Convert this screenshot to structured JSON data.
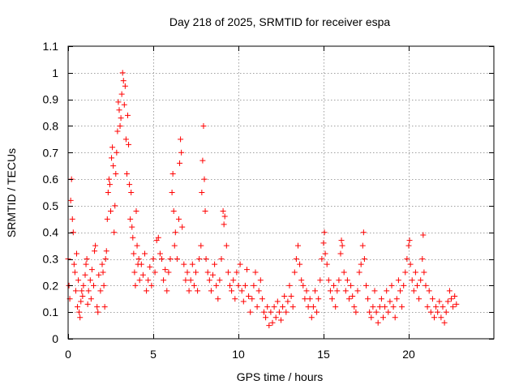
{
  "chart_data": {
    "type": "scatter",
    "title": "Day 218 of 2025, SRMTID for receiver espa",
    "xlabel": "GPS time / hours",
    "ylabel": "SRMTID / TECUs",
    "xlim": [
      0,
      25
    ],
    "ylim": [
      0,
      1.1
    ],
    "xticks": [
      0,
      5,
      10,
      15,
      20
    ],
    "xtick_labels": [
      "0",
      "5",
      "10",
      "15",
      "20"
    ],
    "yticks": [
      0,
      0.1,
      0.2,
      0.3,
      0.4,
      0.5,
      0.6,
      0.7,
      0.8,
      0.9,
      1,
      1.1
    ],
    "ytick_labels": [
      "0",
      "0.1",
      "0.2",
      "0.3",
      "0.4",
      "0.5",
      "0.6",
      "0.7",
      "0.8",
      "0.9",
      "1",
      "1.1"
    ],
    "grid": true,
    "marker": "+",
    "marker_color": "#ff0000",
    "series": [
      {
        "name": "SRMTID",
        "points": [
          [
            0.0,
            0.3
          ],
          [
            0.05,
            0.2
          ],
          [
            0.1,
            0.15
          ],
          [
            0.15,
            0.52
          ],
          [
            0.2,
            0.6
          ],
          [
            0.25,
            0.45
          ],
          [
            0.3,
            0.4
          ],
          [
            0.35,
            0.28
          ],
          [
            0.4,
            0.25
          ],
          [
            0.45,
            0.18
          ],
          [
            0.5,
            0.32
          ],
          [
            0.55,
            0.12
          ],
          [
            0.6,
            0.22
          ],
          [
            0.65,
            0.1
          ],
          [
            0.7,
            0.08
          ],
          [
            0.75,
            0.14
          ],
          [
            0.8,
            0.18
          ],
          [
            0.85,
            0.16
          ],
          [
            0.9,
            0.2
          ],
          [
            1.0,
            0.24
          ],
          [
            1.05,
            0.28
          ],
          [
            1.1,
            0.3
          ],
          [
            1.15,
            0.13
          ],
          [
            1.2,
            0.18
          ],
          [
            1.3,
            0.22
          ],
          [
            1.35,
            0.15
          ],
          [
            1.4,
            0.26
          ],
          [
            1.5,
            0.2
          ],
          [
            1.55,
            0.33
          ],
          [
            1.6,
            0.35
          ],
          [
            1.7,
            0.12
          ],
          [
            1.75,
            0.1
          ],
          [
            1.8,
            0.24
          ],
          [
            1.9,
            0.18
          ],
          [
            2.0,
            0.28
          ],
          [
            2.05,
            0.25
          ],
          [
            2.1,
            0.2
          ],
          [
            2.15,
            0.12
          ],
          [
            2.2,
            0.3
          ],
          [
            2.25,
            0.33
          ],
          [
            2.3,
            0.45
          ],
          [
            2.35,
            0.55
          ],
          [
            2.4,
            0.6
          ],
          [
            2.45,
            0.58
          ],
          [
            2.5,
            0.48
          ],
          [
            2.55,
            0.68
          ],
          [
            2.6,
            0.72
          ],
          [
            2.65,
            0.65
          ],
          [
            2.7,
            0.4
          ],
          [
            2.75,
            0.5
          ],
          [
            2.8,
            0.62
          ],
          [
            2.85,
            0.7
          ],
          [
            2.9,
            0.78
          ],
          [
            2.95,
            0.89
          ],
          [
            3.0,
            0.86
          ],
          [
            3.05,
            0.8
          ],
          [
            3.1,
            0.83
          ],
          [
            3.15,
            0.92
          ],
          [
            3.2,
            1.0
          ],
          [
            3.25,
            0.97
          ],
          [
            3.3,
            0.88
          ],
          [
            3.35,
            0.95
          ],
          [
            3.4,
            0.75
          ],
          [
            3.45,
            0.62
          ],
          [
            3.5,
            0.84
          ],
          [
            3.55,
            0.73
          ],
          [
            3.6,
            0.58
          ],
          [
            3.65,
            0.45
          ],
          [
            3.7,
            0.55
          ],
          [
            3.75,
            0.42
          ],
          [
            3.8,
            0.38
          ],
          [
            3.85,
            0.32
          ],
          [
            3.9,
            0.25
          ],
          [
            3.95,
            0.2
          ],
          [
            4.0,
            0.48
          ],
          [
            4.05,
            0.35
          ],
          [
            4.1,
            0.28
          ],
          [
            4.15,
            0.3
          ],
          [
            4.2,
            0.22
          ],
          [
            4.3,
            0.28
          ],
          [
            4.4,
            0.24
          ],
          [
            4.5,
            0.32
          ],
          [
            4.6,
            0.18
          ],
          [
            4.7,
            0.22
          ],
          [
            4.8,
            0.27
          ],
          [
            4.9,
            0.2
          ],
          [
            5.0,
            0.3
          ],
          [
            5.1,
            0.25
          ],
          [
            5.2,
            0.37
          ],
          [
            5.3,
            0.38
          ],
          [
            5.4,
            0.32
          ],
          [
            5.5,
            0.3
          ],
          [
            5.6,
            0.22
          ],
          [
            5.7,
            0.26
          ],
          [
            5.8,
            0.18
          ],
          [
            5.9,
            0.25
          ],
          [
            6.0,
            0.3
          ],
          [
            6.1,
            0.55
          ],
          [
            6.15,
            0.62
          ],
          [
            6.2,
            0.48
          ],
          [
            6.25,
            0.35
          ],
          [
            6.3,
            0.4
          ],
          [
            6.4,
            0.3
          ],
          [
            6.5,
            0.45
          ],
          [
            6.55,
            0.66
          ],
          [
            6.6,
            0.75
          ],
          [
            6.65,
            0.7
          ],
          [
            6.7,
            0.42
          ],
          [
            6.8,
            0.28
          ],
          [
            6.9,
            0.22
          ],
          [
            7.0,
            0.25
          ],
          [
            7.1,
            0.18
          ],
          [
            7.2,
            0.22
          ],
          [
            7.3,
            0.28
          ],
          [
            7.4,
            0.2
          ],
          [
            7.5,
            0.25
          ],
          [
            7.6,
            0.18
          ],
          [
            7.7,
            0.3
          ],
          [
            7.8,
            0.35
          ],
          [
            7.85,
            0.55
          ],
          [
            7.9,
            0.67
          ],
          [
            7.95,
            0.8
          ],
          [
            8.0,
            0.6
          ],
          [
            8.05,
            0.48
          ],
          [
            8.1,
            0.3
          ],
          [
            8.2,
            0.25
          ],
          [
            8.3,
            0.22
          ],
          [
            8.4,
            0.18
          ],
          [
            8.5,
            0.24
          ],
          [
            8.6,
            0.28
          ],
          [
            8.7,
            0.2
          ],
          [
            8.8,
            0.15
          ],
          [
            8.9,
            0.22
          ],
          [
            9.0,
            0.3
          ],
          [
            9.1,
            0.48
          ],
          [
            9.15,
            0.43
          ],
          [
            9.2,
            0.46
          ],
          [
            9.3,
            0.35
          ],
          [
            9.4,
            0.25
          ],
          [
            9.5,
            0.2
          ],
          [
            9.6,
            0.18
          ],
          [
            9.7,
            0.22
          ],
          [
            9.8,
            0.15
          ],
          [
            9.9,
            0.25
          ],
          [
            10.0,
            0.2
          ],
          [
            10.1,
            0.28
          ],
          [
            10.2,
            0.18
          ],
          [
            10.3,
            0.14
          ],
          [
            10.4,
            0.2
          ],
          [
            10.5,
            0.26
          ],
          [
            10.6,
            0.16
          ],
          [
            10.7,
            0.1
          ],
          [
            10.8,
            0.15
          ],
          [
            10.9,
            0.2
          ],
          [
            11.0,
            0.25
          ],
          [
            11.1,
            0.12
          ],
          [
            11.2,
            0.18
          ],
          [
            11.3,
            0.22
          ],
          [
            11.4,
            0.15
          ],
          [
            11.5,
            0.1
          ],
          [
            11.6,
            0.08
          ],
          [
            11.7,
            0.12
          ],
          [
            11.8,
            0.05
          ],
          [
            11.9,
            0.1
          ],
          [
            12.0,
            0.06
          ],
          [
            12.1,
            0.12
          ],
          [
            12.2,
            0.08
          ],
          [
            12.3,
            0.14
          ],
          [
            12.4,
            0.1
          ],
          [
            12.5,
            0.07
          ],
          [
            12.6,
            0.12
          ],
          [
            12.7,
            0.16
          ],
          [
            12.8,
            0.1
          ],
          [
            12.9,
            0.14
          ],
          [
            13.0,
            0.2
          ],
          [
            13.1,
            0.16
          ],
          [
            13.2,
            0.12
          ],
          [
            13.3,
            0.25
          ],
          [
            13.4,
            0.3
          ],
          [
            13.5,
            0.35
          ],
          [
            13.6,
            0.28
          ],
          [
            13.7,
            0.22
          ],
          [
            13.8,
            0.2
          ],
          [
            13.9,
            0.15
          ],
          [
            14.0,
            0.18
          ],
          [
            14.1,
            0.12
          ],
          [
            14.2,
            0.15
          ],
          [
            14.3,
            0.08
          ],
          [
            14.4,
            0.12
          ],
          [
            14.5,
            0.18
          ],
          [
            14.6,
            0.1
          ],
          [
            14.7,
            0.15
          ],
          [
            14.8,
            0.22
          ],
          [
            14.9,
            0.3
          ],
          [
            15.0,
            0.36
          ],
          [
            15.05,
            0.4
          ],
          [
            15.1,
            0.32
          ],
          [
            15.2,
            0.28
          ],
          [
            15.3,
            0.22
          ],
          [
            15.4,
            0.18
          ],
          [
            15.5,
            0.15
          ],
          [
            15.6,
            0.2
          ],
          [
            15.7,
            0.12
          ],
          [
            15.8,
            0.18
          ],
          [
            15.9,
            0.22
          ],
          [
            16.0,
            0.32
          ],
          [
            16.05,
            0.37
          ],
          [
            16.1,
            0.35
          ],
          [
            16.2,
            0.25
          ],
          [
            16.3,
            0.18
          ],
          [
            16.4,
            0.22
          ],
          [
            16.5,
            0.15
          ],
          [
            16.6,
            0.2
          ],
          [
            16.7,
            0.16
          ],
          [
            16.8,
            0.12
          ],
          [
            16.9,
            0.1
          ],
          [
            17.0,
            0.18
          ],
          [
            17.1,
            0.25
          ],
          [
            17.2,
            0.28
          ],
          [
            17.3,
            0.35
          ],
          [
            17.35,
            0.4
          ],
          [
            17.4,
            0.3
          ],
          [
            17.5,
            0.2
          ],
          [
            17.6,
            0.15
          ],
          [
            17.7,
            0.1
          ],
          [
            17.8,
            0.08
          ],
          [
            17.9,
            0.12
          ],
          [
            18.0,
            0.18
          ],
          [
            18.1,
            0.1
          ],
          [
            18.2,
            0.06
          ],
          [
            18.3,
            0.12
          ],
          [
            18.4,
            0.15
          ],
          [
            18.5,
            0.08
          ],
          [
            18.6,
            0.12
          ],
          [
            18.7,
            0.18
          ],
          [
            18.8,
            0.1
          ],
          [
            18.9,
            0.14
          ],
          [
            19.0,
            0.2
          ],
          [
            19.1,
            0.12
          ],
          [
            19.2,
            0.08
          ],
          [
            19.3,
            0.15
          ],
          [
            19.4,
            0.22
          ],
          [
            19.5,
            0.18
          ],
          [
            19.6,
            0.12
          ],
          [
            19.7,
            0.2
          ],
          [
            19.8,
            0.25
          ],
          [
            19.9,
            0.3
          ],
          [
            20.0,
            0.35
          ],
          [
            20.05,
            0.37
          ],
          [
            20.1,
            0.28
          ],
          [
            20.2,
            0.22
          ],
          [
            20.3,
            0.18
          ],
          [
            20.4,
            0.25
          ],
          [
            20.5,
            0.2
          ],
          [
            20.6,
            0.15
          ],
          [
            20.7,
            0.22
          ],
          [
            20.8,
            0.3
          ],
          [
            20.85,
            0.39
          ],
          [
            20.9,
            0.25
          ],
          [
            21.0,
            0.2
          ],
          [
            21.1,
            0.12
          ],
          [
            21.2,
            0.18
          ],
          [
            21.3,
            0.1
          ],
          [
            21.4,
            0.15
          ],
          [
            21.5,
            0.08
          ],
          [
            21.6,
            0.12
          ],
          [
            21.7,
            0.1
          ],
          [
            21.8,
            0.14
          ],
          [
            21.9,
            0.08
          ],
          [
            22.0,
            0.12
          ],
          [
            22.1,
            0.06
          ],
          [
            22.2,
            0.1
          ],
          [
            22.3,
            0.14
          ],
          [
            22.4,
            0.18
          ],
          [
            22.5,
            0.15
          ],
          [
            22.6,
            0.12
          ],
          [
            22.7,
            0.16
          ],
          [
            22.8,
            0.13
          ]
        ]
      }
    ]
  }
}
